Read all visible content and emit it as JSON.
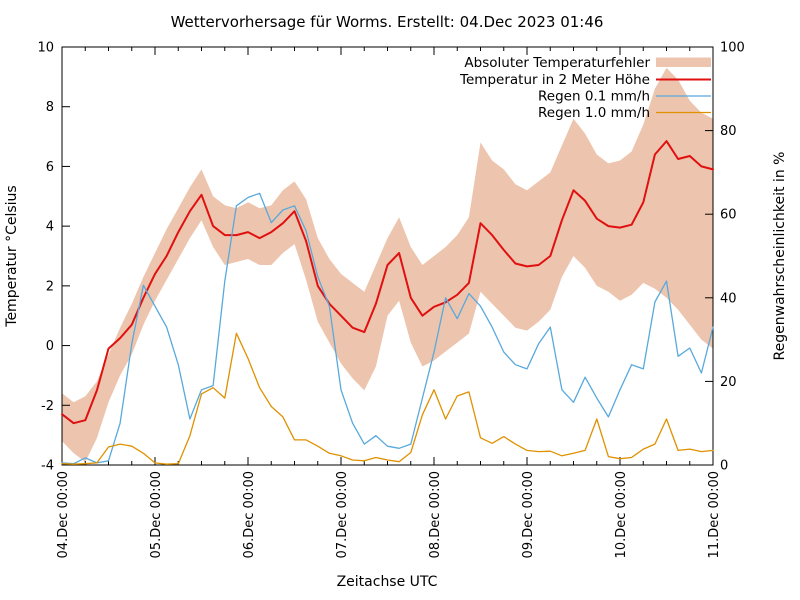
{
  "chart_data": {
    "type": "line",
    "title": "Wettervorhersage für Worms. Erstellt: 04.Dec 2023 01:46",
    "xlabel": "Zeitachse UTC",
    "ylabel": "Temperatur °Celsius",
    "y2label": "Regenwahrscheinlichkeit in %",
    "x_unit_hours_since": "04.Dec 2023 00:00 UTC",
    "x_step_hours": 3,
    "x_range_hours": [
      0,
      168
    ],
    "x_major_tick_hours": 24,
    "x_minor_tick_hours": 6,
    "ylim_temp": [
      -4,
      10
    ],
    "ylim_rain_percent": [
      0,
      100
    ],
    "grid": "off",
    "legend_position": "top-right inside, labels left of samples",
    "x_tick_labels": [
      "04.Dec 00:00",
      "05.Dec 00:00",
      "06.Dec 00:00",
      "07.Dec 00:00",
      "08.Dec 00:00",
      "09.Dec 00:00",
      "10.Dec 00:00",
      "11.Dec 00:00"
    ],
    "y_tick_labels_temp": [
      "10",
      "8",
      "6",
      "4",
      "2",
      "0",
      "-2",
      "-4"
    ],
    "y_tick_labels_rain": [
      "100",
      "80",
      "60",
      "40",
      "20",
      "0"
    ],
    "legend": [
      {
        "label": "Absoluter Temperaturfehler",
        "type": "band",
        "color": "#edc5ae"
      },
      {
        "label": "Temperatur in 2 Meter Höhe",
        "type": "line",
        "color": "#e01010"
      },
      {
        "label": "Regen 0.1 mm/h",
        "type": "line",
        "color": "#58a9dc"
      },
      {
        "label": "Regen 1.0 mm/h",
        "type": "line",
        "color": "#df9100"
      }
    ],
    "series": [
      {
        "name": "Absoluter Temperaturfehler (obere Grenze)",
        "role": "band_upper",
        "axis": "temp_celsius",
        "values": [
          -1.6,
          -1.9,
          -1.7,
          -1.2,
          -0.3,
          0.6,
          1.4,
          2.3,
          3.1,
          3.9,
          4.6,
          5.3,
          5.9,
          5.0,
          4.7,
          4.6,
          4.8,
          4.6,
          4.7,
          5.2,
          5.5,
          4.9,
          3.6,
          2.9,
          2.4,
          2.1,
          1.8,
          2.7,
          3.6,
          4.3,
          3.3,
          2.7,
          3.0,
          3.3,
          3.7,
          4.3,
          6.8,
          6.2,
          5.9,
          5.4,
          5.2,
          5.5,
          5.8,
          6.7,
          7.6,
          7.1,
          6.4,
          6.1,
          6.2,
          6.5,
          7.4,
          8.6,
          9.3,
          8.9,
          8.2,
          7.8,
          7.6
        ]
      },
      {
        "name": "Absoluter Temperaturfehler (untere Grenze)",
        "role": "band_lower",
        "axis": "temp_celsius",
        "values": [
          -3.2,
          -3.6,
          -3.9,
          -3.1,
          -1.9,
          -1.0,
          -0.3,
          0.7,
          1.5,
          2.2,
          2.9,
          3.6,
          4.2,
          3.3,
          2.7,
          2.8,
          2.9,
          2.7,
          2.7,
          3.1,
          3.4,
          2.2,
          0.8,
          0.1,
          -0.6,
          -1.1,
          -1.5,
          -0.7,
          1.0,
          1.5,
          0.1,
          -0.7,
          -0.5,
          -0.2,
          0.1,
          0.4,
          1.8,
          1.4,
          1.0,
          0.6,
          0.5,
          0.8,
          1.2,
          2.3,
          3.0,
          2.6,
          2.0,
          1.8,
          1.5,
          1.7,
          2.1,
          1.9,
          1.6,
          1.2,
          0.7,
          0.2,
          -0.1
        ]
      },
      {
        "name": "Temperatur in 2 Meter Höhe",
        "role": "temperature",
        "axis": "temp_celsius",
        "values": [
          -2.3,
          -2.6,
          -2.5,
          -1.5,
          -0.1,
          0.25,
          0.7,
          1.6,
          2.4,
          3.0,
          3.8,
          4.5,
          5.05,
          4.0,
          3.7,
          3.7,
          3.8,
          3.6,
          3.8,
          4.1,
          4.5,
          3.5,
          2.0,
          1.4,
          1.0,
          0.6,
          0.45,
          1.4,
          2.7,
          3.1,
          1.6,
          1.0,
          1.3,
          1.45,
          1.7,
          2.1,
          4.1,
          3.7,
          3.2,
          2.75,
          2.65,
          2.7,
          3.0,
          4.2,
          5.2,
          4.85,
          4.25,
          4.0,
          3.95,
          4.05,
          4.8,
          6.4,
          6.85,
          6.25,
          6.35,
          6.0,
          5.9
        ]
      },
      {
        "name": "Regen 0.1 mm/h",
        "role": "rain01",
        "axis": "rain_percent",
        "values": [
          0.5,
          0.3,
          1.7,
          0.5,
          1,
          10,
          29,
          43,
          38,
          33,
          24,
          11,
          18,
          19,
          44,
          62,
          64,
          65,
          58,
          61,
          62,
          56,
          45,
          38,
          18,
          10,
          5,
          7,
          4.5,
          4,
          5,
          16,
          27,
          40,
          35,
          41,
          38,
          33,
          27,
          24,
          23,
          29,
          33,
          18,
          15,
          21,
          16,
          11.5,
          18,
          24,
          23,
          39,
          44,
          26,
          28,
          22,
          33
        ]
      },
      {
        "name": "Regen 1.0 mm/h",
        "role": "rain10",
        "axis": "rain_percent",
        "values": [
          0.3,
          0.2,
          0.3,
          0.5,
          4.3,
          5,
          4.5,
          2.8,
          0.5,
          0.2,
          0.3,
          7,
          17,
          18.5,
          16,
          31.5,
          25.5,
          18.5,
          14,
          11.5,
          6,
          6,
          4.5,
          2.8,
          2.2,
          1.2,
          1.0,
          1.8,
          1.2,
          0.8,
          3,
          12,
          18,
          11,
          16.5,
          17.5,
          6.5,
          5.2,
          6.8,
          5,
          3.5,
          3.2,
          3.3,
          2.2,
          2.8,
          3.5,
          11,
          2,
          1.5,
          1.8,
          3.8,
          5,
          11,
          3.5,
          3.8,
          3.2,
          3.5
        ]
      }
    ],
    "colors": {
      "background": "#ffffff",
      "axis": "#000000",
      "text": "#000000",
      "error_band": "#edc5ae",
      "temperature_line": "#e01010",
      "rain01_line": "#58a9dc",
      "rain10_line": "#df9100"
    }
  }
}
